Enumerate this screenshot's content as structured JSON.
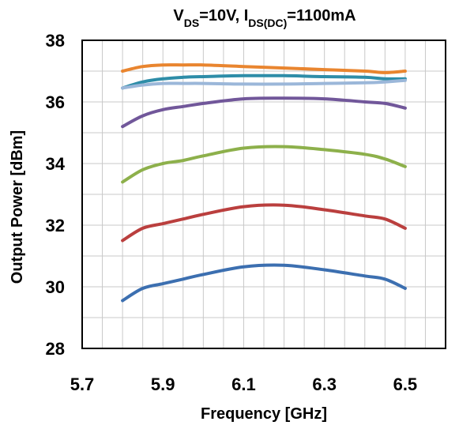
{
  "chart_data": {
    "type": "line",
    "title_main": "V",
    "title_sub1": "DS",
    "title_mid": "=10V, I",
    "title_sub2": "DS(DC)",
    "title_end": "=1100mA",
    "xlabel": "Frequency [GHz]",
    "ylabel": "Output Power [dBm]",
    "xlim": [
      5.7,
      6.6
    ],
    "ylim": [
      28,
      38
    ],
    "xticks": [
      5.7,
      5.9,
      6.1,
      6.3,
      6.5
    ],
    "xtick_labels": [
      "5.7",
      "5.9",
      "6.1",
      "6.3",
      "6.5"
    ],
    "xgrid": [
      5.7,
      5.75,
      5.8,
      5.85,
      5.9,
      5.95,
      6.0,
      6.05,
      6.1,
      6.15,
      6.2,
      6.25,
      6.3,
      6.35,
      6.4,
      6.45,
      6.5,
      6.55,
      6.6
    ],
    "yticks": [
      28,
      30,
      32,
      34,
      36,
      38
    ],
    "ytick_labels": [
      "28",
      "30",
      "32",
      "34",
      "36",
      "38"
    ],
    "ygrid": [
      28,
      29,
      30,
      31,
      32,
      33,
      34,
      35,
      36,
      37,
      38
    ],
    "grid": true,
    "series": [
      {
        "color": "#E9852F",
        "x": [
          5.8,
          5.85,
          5.9,
          5.95,
          6.0,
          6.1,
          6.2,
          6.3,
          6.4,
          6.45,
          6.5
        ],
        "y": [
          37.0,
          37.15,
          37.2,
          37.2,
          37.2,
          37.15,
          37.1,
          37.05,
          37.0,
          36.95,
          37.0
        ]
      },
      {
        "color": "#2E8DA8",
        "x": [
          5.8,
          5.85,
          5.9,
          5.95,
          6.0,
          6.1,
          6.2,
          6.3,
          6.4,
          6.45,
          6.5
        ],
        "y": [
          36.45,
          36.65,
          36.75,
          36.8,
          36.82,
          36.85,
          36.85,
          36.82,
          36.8,
          36.75,
          36.75
        ]
      },
      {
        "color": "#9BB7D9",
        "x": [
          5.8,
          5.85,
          5.9,
          5.95,
          6.0,
          6.1,
          6.2,
          6.3,
          6.4,
          6.45,
          6.5
        ],
        "y": [
          36.45,
          36.55,
          36.6,
          36.6,
          36.6,
          36.58,
          36.58,
          36.6,
          36.62,
          36.65,
          36.7
        ]
      },
      {
        "color": "#71579A",
        "x": [
          5.8,
          5.85,
          5.9,
          5.95,
          6.0,
          6.1,
          6.2,
          6.3,
          6.4,
          6.45,
          6.5
        ],
        "y": [
          35.2,
          35.55,
          35.75,
          35.85,
          35.95,
          36.1,
          36.12,
          36.1,
          36.0,
          35.95,
          35.8
        ]
      },
      {
        "color": "#8DB04B",
        "x": [
          5.8,
          5.85,
          5.9,
          5.95,
          6.0,
          6.1,
          6.2,
          6.3,
          6.4,
          6.45,
          6.5
        ],
        "y": [
          33.4,
          33.8,
          34.0,
          34.1,
          34.25,
          34.5,
          34.55,
          34.45,
          34.3,
          34.15,
          33.9
        ]
      },
      {
        "color": "#BA3F3E",
        "x": [
          5.8,
          5.85,
          5.9,
          5.95,
          6.0,
          6.1,
          6.2,
          6.3,
          6.4,
          6.45,
          6.5
        ],
        "y": [
          31.5,
          31.9,
          32.05,
          32.2,
          32.35,
          32.6,
          32.65,
          32.5,
          32.3,
          32.2,
          31.9
        ]
      },
      {
        "color": "#3C6FB0",
        "x": [
          5.8,
          5.85,
          5.9,
          5.95,
          6.0,
          6.1,
          6.2,
          6.3,
          6.4,
          6.45,
          6.5
        ],
        "y": [
          29.55,
          29.95,
          30.1,
          30.25,
          30.4,
          30.65,
          30.7,
          30.55,
          30.35,
          30.25,
          29.95
        ]
      }
    ]
  }
}
